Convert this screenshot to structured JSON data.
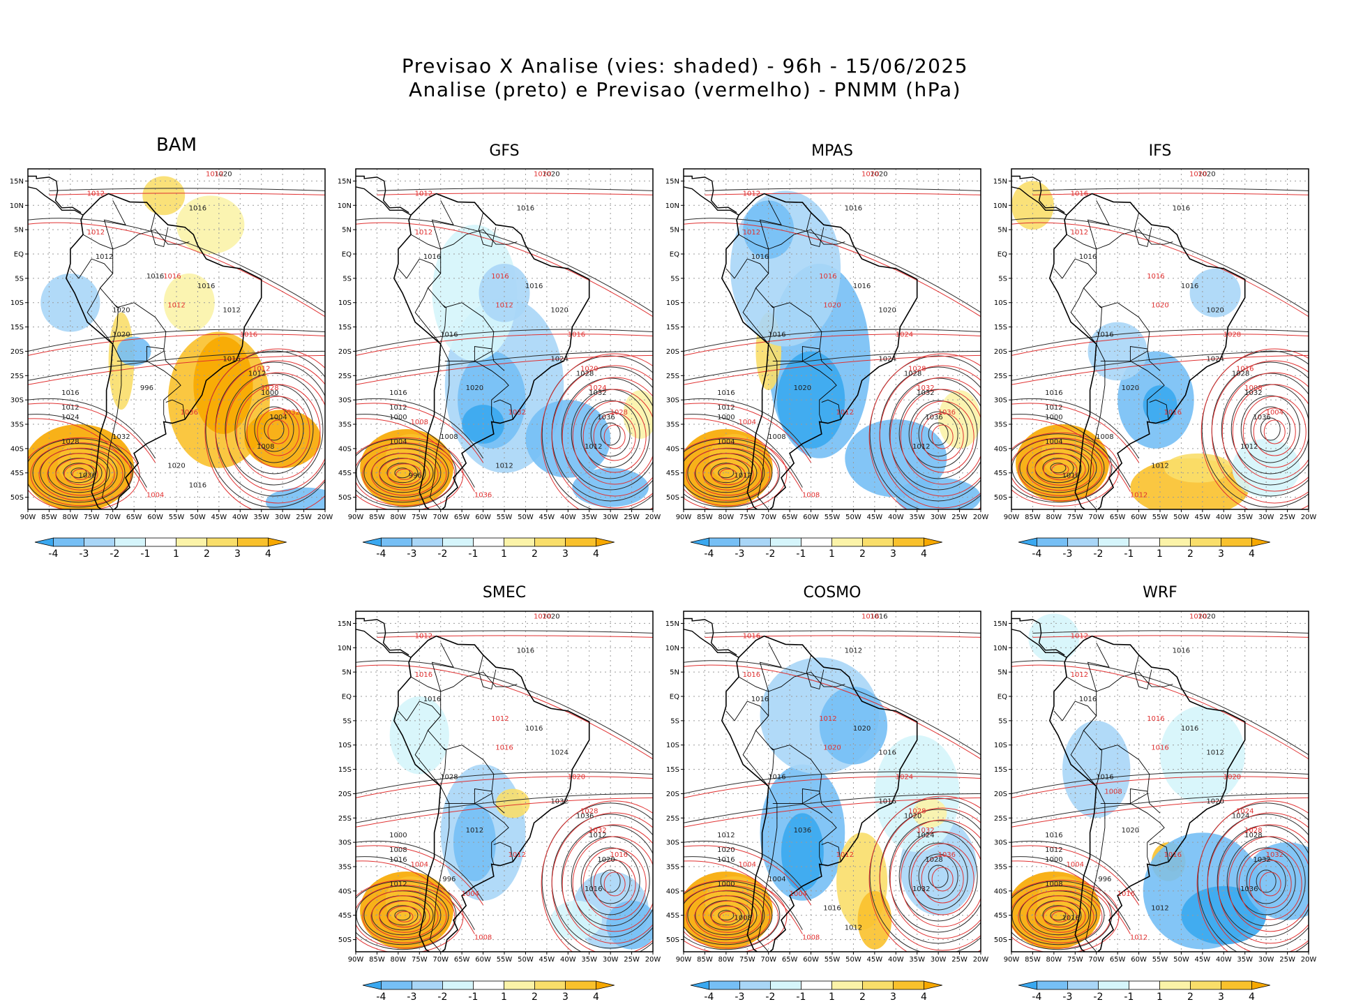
{
  "header": {
    "line1": "Previsao X Analise (vies: shaded) - 96h - 15/06/2025",
    "line2": "Analise (preto) e Previsao (vermelho) - PNMM (hPa)"
  },
  "axes": {
    "lat_labels": [
      "15N",
      "10N",
      "5N",
      "EQ",
      "5S",
      "10S",
      "15S",
      "20S",
      "25S",
      "30S",
      "35S",
      "40S",
      "45S",
      "50S"
    ],
    "lon_labels": [
      "90W",
      "85W",
      "80W",
      "75W",
      "70W",
      "65W",
      "60W",
      "55W",
      "50W",
      "45W",
      "40W",
      "35W",
      "30W",
      "25W",
      "20W"
    ]
  },
  "colorbar": {
    "labels": [
      "-4",
      "-3",
      "-2",
      "-1",
      "1",
      "2",
      "3",
      "4"
    ],
    "colors": [
      "#3aa8f0",
      "#76bff5",
      "#a9d6f7",
      "#d5f5fb",
      "#ffffff",
      "#fbf3a8",
      "#f9de6a",
      "#f9c12c",
      "#f7a800"
    ]
  },
  "colors": {
    "analysis": "#1e1e1e",
    "forecast": "#e03030",
    "land_border": "#000000"
  },
  "panels": [
    {
      "model": "BAM",
      "labels_black": [
        "1020",
        "1016",
        "1012",
        "1016",
        "1012",
        "1020",
        "1016",
        "1012",
        "1000",
        "1004",
        "1008",
        "996",
        "1016",
        "1012",
        "1024",
        "1028",
        "1032",
        "1036",
        "1020",
        "1016",
        "1020",
        "1016"
      ],
      "labels_red": [
        "1012",
        "1012",
        "1012",
        "1016",
        "1012",
        "1016",
        "1012",
        "1028",
        "1032",
        "1036",
        "1004"
      ]
    },
    {
      "model": "GFS",
      "labels_black": [
        "1020",
        "1016",
        "1016",
        "1016",
        "1020",
        "1016",
        "1024",
        "1028",
        "1032",
        "1036",
        "1012",
        "1020",
        "1016",
        "1012",
        "1000",
        "1004",
        "1008",
        "996",
        "1012"
      ],
      "labels_red": [
        "1020",
        "1012",
        "1012",
        "1016",
        "1012",
        "1016",
        "1020",
        "1024",
        "1028",
        "1032",
        "1036",
        "1008"
      ]
    },
    {
      "model": "MPAS",
      "labels_black": [
        "1020",
        "1016",
        "1016",
        "1016",
        "1020",
        "1016",
        "1024",
        "1028",
        "1032",
        "1036",
        "1012",
        "1020",
        "1016",
        "1012",
        "1000",
        "1004",
        "1008",
        "1012"
      ],
      "labels_red": [
        "1020",
        "1012",
        "1012",
        "1016",
        "1020",
        "1024",
        "1028",
        "1032",
        "1036",
        "1012",
        "1008",
        "1004"
      ]
    },
    {
      "model": "IFS",
      "labels_black": [
        "1020",
        "1016",
        "1016",
        "1016",
        "1020",
        "1016",
        "1024",
        "1028",
        "1032",
        "1036",
        "1012",
        "1020",
        "1016",
        "1012",
        "1000",
        "1004",
        "1008",
        "1016",
        "1012"
      ],
      "labels_red": [
        "1020",
        "1016",
        "1012",
        "1016",
        "1020",
        "1028",
        "1016",
        "1008",
        "1004",
        "1016",
        "1012"
      ]
    },
    {
      "model": "SMEC",
      "labels_black": [
        "1020",
        "1016",
        "1016",
        "1016",
        "1024",
        "1028",
        "1032",
        "1036",
        "1012",
        "1020",
        "1016",
        "1012",
        "1000",
        "1008",
        "1016",
        "1012",
        "996"
      ],
      "labels_red": [
        "1020",
        "1012",
        "1016",
        "1012",
        "1016",
        "1020",
        "1028",
        "1032",
        "1016",
        "1012",
        "1008",
        "1004",
        "1004"
      ]
    },
    {
      "model": "COSMO",
      "labels_black": [
        "1016",
        "1012",
        "1016",
        "1020",
        "1016",
        "1016",
        "1016",
        "1020",
        "1024",
        "1028",
        "1032",
        "1036",
        "1012",
        "1020",
        "1016",
        "1000",
        "1004",
        "1008",
        "1016",
        "1012"
      ],
      "labels_red": [
        "1016",
        "1016",
        "1016",
        "1012",
        "1020",
        "1024",
        "1028",
        "1032",
        "1036",
        "1012",
        "1008",
        "1004",
        "1004"
      ]
    },
    {
      "model": "WRF",
      "labels_black": [
        "1020",
        "1016",
        "1016",
        "1016",
        "1012",
        "1016",
        "1020",
        "1024",
        "1028",
        "1032",
        "1036",
        "1020",
        "1016",
        "1012",
        "1000",
        "1008",
        "996",
        "1016",
        "1012"
      ],
      "labels_red": [
        "1020",
        "1012",
        "1012",
        "1016",
        "1016",
        "1020",
        "1024",
        "1028",
        "1032",
        "1016",
        "1012",
        "1004",
        "1016",
        "1008"
      ]
    }
  ]
}
